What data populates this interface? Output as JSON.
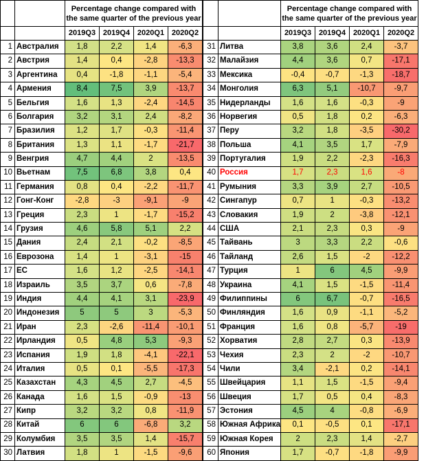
{
  "header": {
    "title": "Percentage change compared with the same quarter of the previous year",
    "quarters": [
      "2019Q3",
      "2019Q4",
      "2020Q1",
      "2020Q2"
    ]
  },
  "left_rows": [
    {
      "n": "1",
      "c": "Австралия",
      "v": [
        "1,8",
        "2,2",
        "1,4",
        "-6,3"
      ],
      "bg": [
        "#d2e088",
        "#d6e186",
        "#f0e584",
        "#fbaf7a"
      ]
    },
    {
      "n": "2",
      "c": "Австрия",
      "v": [
        "1,4",
        "0,4",
        "-2,8",
        "-13,3"
      ],
      "bg": [
        "#e3e284",
        "#fde683",
        "#fed380",
        "#f98c6f"
      ]
    },
    {
      "n": "3",
      "c": "Аргентина",
      "v": [
        "0,4",
        "-1,8",
        "-1,1",
        "-5,4"
      ],
      "bg": [
        "#e6e383",
        "#fde282",
        "#fdd680",
        "#fbb47b"
      ]
    },
    {
      "n": "4",
      "c": "Армения",
      "v": [
        "8,4",
        "7,5",
        "3,9",
        "-13,7"
      ],
      "bg": [
        "#63be7b",
        "#72c27c",
        "#b0d57f",
        "#f98a6f"
      ]
    },
    {
      "n": "5",
      "c": "Бельгия",
      "v": [
        "1,6",
        "1,3",
        "-2,4",
        "-14,5"
      ],
      "bg": [
        "#d4e186",
        "#e8e383",
        "#fed681",
        "#f8856e"
      ]
    },
    {
      "n": "6",
      "c": "Болгария",
      "v": [
        "3,2",
        "3,1",
        "2,4",
        "-8,2"
      ],
      "bg": [
        "#b0d580",
        "#b3d67f",
        "#d0df82",
        "#faa878"
      ]
    },
    {
      "n": "7",
      "c": "Бразилия",
      "v": [
        "1,2",
        "1,7",
        "-0,3",
        "-11,4"
      ],
      "bg": [
        "#dde284",
        "#dfe283",
        "#fde082",
        "#f99572"
      ]
    },
    {
      "n": "8",
      "c": "Британия",
      "v": [
        "1,3",
        "1,1",
        "-1,7",
        "-21,7"
      ],
      "bg": [
        "#dbe284",
        "#ebe383",
        "#fedb81",
        "#f8696b"
      ]
    },
    {
      "n": "9",
      "c": "Венгрия",
      "v": [
        "4,7",
        "4,4",
        "2",
        "-13,5"
      ],
      "bg": [
        "#9bcf7e",
        "#a1d17e",
        "#d9e283",
        "#f98b6f"
      ]
    },
    {
      "n": "10",
      "c": "Вьетнам",
      "v": [
        "7,5",
        "6,8",
        "3,8",
        "0,4"
      ],
      "bg": [
        "#72c27c",
        "#7dc57d",
        "#b3d680",
        "#fde683"
      ]
    },
    {
      "n": "11",
      "c": "Германия",
      "v": [
        "0,8",
        "0,4",
        "-2,2",
        "-11,7"
      ],
      "bg": [
        "#e3e284",
        "#fde683",
        "#fed882",
        "#f99372"
      ]
    },
    {
      "n": "12",
      "c": "Гонг-Конг",
      "v": [
        "-2,8",
        "-3",
        "-9,1",
        "-9"
      ],
      "bg": [
        "#fed881",
        "#fdd080",
        "#fba176",
        "#faa376"
      ]
    },
    {
      "n": "13",
      "c": "Греция",
      "v": [
        "2,3",
        "1",
        "-1,7",
        "-15,2"
      ],
      "bg": [
        "#cadd81",
        "#ede483",
        "#fedb81",
        "#f8806d"
      ]
    },
    {
      "n": "14",
      "c": "Грузия",
      "v": [
        "4,6",
        "5,8",
        "5,1",
        "2,2"
      ],
      "bg": [
        "#9dd07e",
        "#88c87d",
        "#9fd07e",
        "#d6e183"
      ]
    },
    {
      "n": "15",
      "c": "Дания",
      "v": [
        "2,4",
        "2,1",
        "-0,2",
        "-8,5"
      ],
      "bg": [
        "#c6dc81",
        "#d2e083",
        "#fde082",
        "#faa576"
      ]
    },
    {
      "n": "16",
      "c": "Еврозона",
      "v": [
        "1,4",
        "1",
        "-3,1",
        "-15"
      ],
      "bg": [
        "#d9e283",
        "#ede483",
        "#fed280",
        "#f8816d"
      ]
    },
    {
      "n": "17",
      "c": "ЕС",
      "v": [
        "1,6",
        "1,2",
        "-2,5",
        "-14,1"
      ],
      "bg": [
        "#d4e186",
        "#e8e383",
        "#fed681",
        "#f8876f"
      ]
    },
    {
      "n": "18",
      "c": "Израиль",
      "v": [
        "3,5",
        "3,7",
        "0,6",
        "-7,8"
      ],
      "bg": [
        "#b1d580",
        "#abd47f",
        "#f5e583",
        "#faab78"
      ]
    },
    {
      "n": "19",
      "c": "Индия",
      "v": [
        "4,4",
        "4,1",
        "3,1",
        "-23,9"
      ],
      "bg": [
        "#a1d17e",
        "#a6d37f",
        "#b9d880",
        "#f8696b"
      ]
    },
    {
      "n": "20",
      "c": "Индонезия",
      "v": [
        "5",
        "5",
        "3",
        "-5,3"
      ],
      "bg": [
        "#8ec97d",
        "#8ec97d",
        "#bcd980",
        "#fbb57b"
      ]
    },
    {
      "n": "21",
      "c": "Иран",
      "v": [
        "2,3",
        "-2,6",
        "-11,4",
        "-10,1"
      ],
      "bg": [
        "#d7e183",
        "#fdd580",
        "#f99472",
        "#fa9c74"
      ]
    },
    {
      "n": "22",
      "c": "Ирландия",
      "v": [
        "0,5",
        "4,8",
        "5,3",
        "-9,3"
      ],
      "bg": [
        "#f0e584",
        "#99cf7e",
        "#8ec97d",
        "#faa176"
      ]
    },
    {
      "n": "23",
      "c": "Испания",
      "v": [
        "1,9",
        "1,8",
        "-4,1",
        "-22,1"
      ],
      "bg": [
        "#cfdf82",
        "#d2e083",
        "#fec77e",
        "#f8696b"
      ]
    },
    {
      "n": "24",
      "c": "Италия",
      "v": [
        "0,5",
        "0,1",
        "-5,5",
        "-17,3"
      ],
      "bg": [
        "#e8e383",
        "#fde683",
        "#fbb57b",
        "#f8756c"
      ]
    },
    {
      "n": "25",
      "c": "Казахстан",
      "v": [
        "4,3",
        "4,5",
        "2,7",
        "-4,5"
      ],
      "bg": [
        "#a6d37f",
        "#a1d17e",
        "#c6dc81",
        "#fcbf7d"
      ]
    },
    {
      "n": "26",
      "c": "Канада",
      "v": [
        "1,6",
        "1,5",
        "-0,9",
        "-13"
      ],
      "bg": [
        "#d4e186",
        "#dae283",
        "#fddc82",
        "#f98e70"
      ]
    },
    {
      "n": "27",
      "c": "Кипр",
      "v": [
        "3,2",
        "3,2",
        "0,8",
        "-11,9"
      ],
      "bg": [
        "#b9d880",
        "#b9d880",
        "#f0e584",
        "#f99272"
      ]
    },
    {
      "n": "28",
      "c": "Китай",
      "v": [
        "6",
        "6",
        "-6,8",
        "3,2"
      ],
      "bg": [
        "#83c77d",
        "#83c77d",
        "#faab78",
        "#b9d880"
      ]
    },
    {
      "n": "29",
      "c": "Колумбия",
      "v": [
        "3,5",
        "3,5",
        "1,4",
        "-15,7"
      ],
      "bg": [
        "#b1d580",
        "#b1d580",
        "#e3e284",
        "#f87f6d"
      ]
    },
    {
      "n": "30",
      "c": "Латвия",
      "v": [
        "1,8",
        "1",
        "-1,5",
        "-9,6"
      ],
      "bg": [
        "#d2e083",
        "#ede483",
        "#fdda81",
        "#fa9f75"
      ]
    }
  ],
  "right_rows": [
    {
      "n": "31",
      "c": "Литва",
      "v": [
        "3,8",
        "3,6",
        "2,4",
        "-3,7"
      ],
      "bg": [
        "#aad47f",
        "#b0d57f",
        "#d0df82",
        "#fcc37e"
      ]
    },
    {
      "n": "32",
      "c": "Малайзия",
      "v": [
        "4,4",
        "3,6",
        "0,7",
        "-17,1"
      ],
      "bg": [
        "#a1d17e",
        "#b0d57f",
        "#f3e584",
        "#f8766c"
      ]
    },
    {
      "n": "33",
      "c": "Мексика",
      "v": [
        "-0,4",
        "-0,7",
        "-1,3",
        "-18,7"
      ],
      "bg": [
        "#fde382",
        "#fddf82",
        "#fdd881",
        "#f86e6b"
      ]
    },
    {
      "n": "34",
      "c": "Монголия",
      "v": [
        "6,3",
        "5,1",
        "-10,7",
        "-9,7"
      ],
      "bg": [
        "#7fc57d",
        "#93cb7e",
        "#f99873",
        "#fa9e75"
      ]
    },
    {
      "n": "35",
      "c": "Нидерланды",
      "v": [
        "1,6",
        "1,6",
        "-0,3",
        "-9"
      ],
      "bg": [
        "#d4e186",
        "#d4e186",
        "#fde082",
        "#faa376"
      ]
    },
    {
      "n": "36",
      "c": "Норвегия",
      "v": [
        "0,5",
        "1,8",
        "0,2",
        "-6,3"
      ],
      "bg": [
        "#f0e584",
        "#d2e083",
        "#fce483",
        "#fbaf7a"
      ]
    },
    {
      "n": "37",
      "c": "Перу",
      "v": [
        "3,2",
        "1,8",
        "-3,5",
        "-30,2"
      ],
      "bg": [
        "#b9d880",
        "#d2e083",
        "#fecf80",
        "#f8696b"
      ]
    },
    {
      "n": "38",
      "c": "Польша",
      "v": [
        "4,1",
        "3,5",
        "1,7",
        "-7,9"
      ],
      "bg": [
        "#a6d37f",
        "#b1d580",
        "#d9e283",
        "#faaa78"
      ]
    },
    {
      "n": "39",
      "c": "Португалия",
      "v": [
        "1,9",
        "2,2",
        "-2,3",
        "-16,3"
      ],
      "bg": [
        "#cfdf82",
        "#cadd81",
        "#fed781",
        "#f87c6d"
      ]
    },
    {
      "n": "40",
      "c": "Россия",
      "v": [
        "1,7",
        "2,3",
        "1,6",
        "-8"
      ],
      "bg": [
        "#d7e183",
        "#cadd81",
        "#d9e283",
        "#faa977"
      ],
      "red": true
    },
    {
      "n": "41",
      "c": "Румыния",
      "v": [
        "3,3",
        "3,9",
        "2,7",
        "-10,5"
      ],
      "bg": [
        "#b5d680",
        "#a6d37f",
        "#c6dc81",
        "#f99a74"
      ]
    },
    {
      "n": "42",
      "c": "Сингапур",
      "v": [
        "0,7",
        "1",
        "-0,3",
        "-13,2"
      ],
      "bg": [
        "#ede483",
        "#e8e383",
        "#fde082",
        "#f98d70"
      ]
    },
    {
      "n": "43",
      "c": "Словакия",
      "v": [
        "1,9",
        "2",
        "-3,8",
        "-12,1"
      ],
      "bg": [
        "#cfdf82",
        "#cddf82",
        "#feca7e",
        "#f99172"
      ]
    },
    {
      "n": "44",
      "c": "США",
      "v": [
        "2,1",
        "2,3",
        "0,3",
        "-9"
      ],
      "bg": [
        "#cadd81",
        "#c6dc81",
        "#fae583",
        "#faa376"
      ]
    },
    {
      "n": "45",
      "c": "Тайвань",
      "v": [
        "3",
        "3,3",
        "2,2",
        "-0,6"
      ],
      "bg": [
        "#bcd980",
        "#b5d680",
        "#cadd81",
        "#fde082"
      ]
    },
    {
      "n": "46",
      "c": "Тайланд",
      "v": [
        "2,6",
        "1,5",
        "-2",
        "-12,2"
      ],
      "bg": [
        "#c4db81",
        "#dae283",
        "#fed881",
        "#f99072"
      ]
    },
    {
      "n": "47",
      "c": "Турция",
      "v": [
        "1",
        "6",
        "4,5",
        "-9,9"
      ],
      "bg": [
        "#ede483",
        "#83c77d",
        "#a1d17e",
        "#fa9d75"
      ]
    },
    {
      "n": "48",
      "c": "Украина",
      "v": [
        "4,1",
        "1,5",
        "-1,5",
        "-11,4"
      ],
      "bg": [
        "#a6d37f",
        "#dae283",
        "#fdda81",
        "#f99572"
      ]
    },
    {
      "n": "49",
      "c": "Филиппины",
      "v": [
        "6",
        "6,7",
        "-0,7",
        "-16,5"
      ],
      "bg": [
        "#83c77d",
        "#79c37c",
        "#fddf82",
        "#f87b6d"
      ]
    },
    {
      "n": "50",
      "c": "Финляндия",
      "v": [
        "1,6",
        "0,9",
        "-1,1",
        "-5,2"
      ],
      "bg": [
        "#d4e186",
        "#e9e383",
        "#fddb81",
        "#fbb67b"
      ]
    },
    {
      "n": "51",
      "c": "Франция",
      "v": [
        "1,6",
        "0,8",
        "-5,7",
        "-19"
      ],
      "bg": [
        "#d4e186",
        "#f0e584",
        "#fbb37a",
        "#f86d6b"
      ]
    },
    {
      "n": "52",
      "c": "Хорватия",
      "v": [
        "2,8",
        "2,7",
        "0,3",
        "-13,9"
      ],
      "bg": [
        "#c0da81",
        "#c4db81",
        "#fae583",
        "#f9896f"
      ]
    },
    {
      "n": "53",
      "c": "Чехия",
      "v": [
        "2,3",
        "2",
        "-2",
        "-10,7"
      ],
      "bg": [
        "#cadd81",
        "#d4e186",
        "#fed881",
        "#f99873"
      ]
    },
    {
      "n": "54",
      "c": "Чили",
      "v": [
        "3,4",
        "-2,1",
        "0,2",
        "-14,1"
      ],
      "bg": [
        "#b3d680",
        "#fed881",
        "#fce483",
        "#f8876f"
      ]
    },
    {
      "n": "55",
      "c": "Швейцария",
      "v": [
        "1,1",
        "1,5",
        "-1,5",
        "-9,4"
      ],
      "bg": [
        "#e6e383",
        "#dae283",
        "#fdda81",
        "#faa075"
      ]
    },
    {
      "n": "56",
      "c": "Швеция",
      "v": [
        "1,7",
        "0,5",
        "0,4",
        "-8,3"
      ],
      "bg": [
        "#d7e183",
        "#f3e584",
        "#f5e583",
        "#faa677"
      ]
    },
    {
      "n": "57",
      "c": "Эстония",
      "v": [
        "4,5",
        "4",
        "-0,8",
        "-6,9"
      ],
      "bg": [
        "#9bcf7e",
        "#a8d37f",
        "#fddd82",
        "#fbae79"
      ]
    },
    {
      "n": "58",
      "c": "Южная Африка",
      "v": [
        "0,1",
        "-0,5",
        "0,1",
        "-17,1"
      ],
      "bg": [
        "#fde683",
        "#fde082",
        "#fde683",
        "#f8766c"
      ]
    },
    {
      "n": "59",
      "c": "Южная Корея",
      "v": [
        "2",
        "2,3",
        "1,4",
        "-2,7"
      ],
      "bg": [
        "#cddf82",
        "#cadd81",
        "#e3e284",
        "#fdcf80"
      ]
    },
    {
      "n": "60",
      "c": "Япония",
      "v": [
        "1,7",
        "-0,7",
        "-1,8",
        "-9,9"
      ],
      "bg": [
        "#d7e183",
        "#fddf82",
        "#fed981",
        "#fa9d75"
      ]
    }
  ]
}
